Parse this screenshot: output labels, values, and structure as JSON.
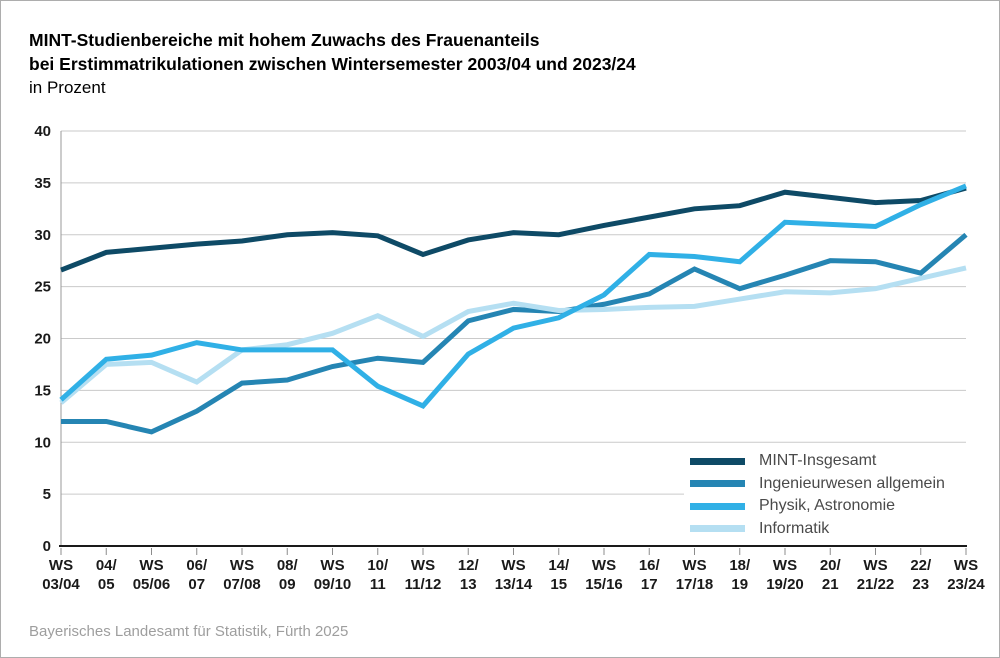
{
  "title": {
    "line1": "MINT-Studienbereiche mit hohem Zuwachs des Frauenanteils",
    "line2": "bei Erstimmatrikulationen zwischen Wintersemester 2003/04 und 2023/24",
    "line3": "in Prozent"
  },
  "source": "Bayerisches Landesamt für Statistik, Fürth 2025",
  "colors": {
    "grid": "#cacaca",
    "axis_bottom": "#1a1a1a",
    "axis_left": "#9a9a9a",
    "tick_mark": "#8c8c8c",
    "tick_label": "#1a1a1a",
    "legend_text": "#4a4a4a",
    "source_text": "#9e9e9e"
  },
  "chart_data": {
    "type": "line",
    "title": "MINT-Studienbereiche mit hohem Zuwachs des Frauenanteils bei Erstimmatrikulationen zwischen Wintersemester 2003/04 und 2023/24",
    "unit": "in Prozent",
    "grid": true,
    "legend_position": "inside-bottom-right",
    "ylim": [
      0,
      40
    ],
    "y_ticks": [
      0,
      5,
      10,
      15,
      20,
      25,
      30,
      35,
      40
    ],
    "categories": [
      "WS 03/04",
      "04/05",
      "WS 05/06",
      "06/07",
      "WS 07/08",
      "08/09",
      "WS 09/10",
      "10/11",
      "WS 11/12",
      "12/13",
      "WS 13/14",
      "14/15",
      "WS 15/16",
      "16/17",
      "WS 17/18",
      "18/19",
      "WS 19/20",
      "20/21",
      "WS 21/22",
      "22/23",
      "WS 23/24"
    ],
    "x_tick_labels": [
      [
        "WS",
        "03/04"
      ],
      [
        "04/",
        "05"
      ],
      [
        "WS",
        "05/06"
      ],
      [
        "06/",
        "07"
      ],
      [
        "WS",
        "07/08"
      ],
      [
        "08/",
        "09"
      ],
      [
        "WS",
        "09/10"
      ],
      [
        "10/",
        "11"
      ],
      [
        "WS",
        "11/12"
      ],
      [
        "12/",
        "13"
      ],
      [
        "WS",
        "13/14"
      ],
      [
        "14/",
        "15"
      ],
      [
        "WS",
        "15/16"
      ],
      [
        "16/",
        "17"
      ],
      [
        "WS",
        "17/18"
      ],
      [
        "18/",
        "19"
      ],
      [
        "WS",
        "19/20"
      ],
      [
        "20/",
        "21"
      ],
      [
        "WS",
        "21/22"
      ],
      [
        "22/",
        "23"
      ],
      [
        "WS",
        "23/24"
      ]
    ],
    "series": [
      {
        "id": "mint-insgesamt",
        "name": "MINT-Insgesamt",
        "color": "#0e4a66",
        "values": [
          26.6,
          28.3,
          28.7,
          29.1,
          29.4,
          30.0,
          30.2,
          29.9,
          28.1,
          29.5,
          30.2,
          30.0,
          30.9,
          31.7,
          32.5,
          32.8,
          34.1,
          33.6,
          33.1,
          33.3,
          34.5
        ]
      },
      {
        "id": "ingenieurwesen-allgemein",
        "name": "Ingenieurwesen allgemein",
        "color": "#2585b3",
        "values": [
          12.0,
          12.0,
          11.0,
          13.0,
          15.7,
          16.0,
          17.3,
          18.1,
          17.7,
          21.7,
          22.8,
          22.6,
          23.3,
          24.3,
          26.7,
          24.8,
          26.1,
          27.5,
          27.4,
          26.3,
          30.0
        ]
      },
      {
        "id": "physik-astronomie",
        "name": "Physik, Astronomie",
        "color": "#30b0e6",
        "values": [
          14.1,
          18.0,
          18.4,
          19.6,
          18.9,
          18.9,
          18.9,
          15.4,
          13.5,
          18.5,
          21.0,
          22.0,
          24.2,
          28.1,
          27.9,
          27.4,
          31.2,
          31.0,
          30.8,
          32.9,
          34.7
        ]
      },
      {
        "id": "informatik",
        "name": "Informatik",
        "color": "#b5dff2",
        "values": [
          13.8,
          17.5,
          17.7,
          15.8,
          18.9,
          19.4,
          20.5,
          22.2,
          20.2,
          22.6,
          23.4,
          22.7,
          22.8,
          23.0,
          23.1,
          23.8,
          24.5,
          24.4,
          24.8,
          25.8,
          26.8
        ]
      }
    ]
  }
}
